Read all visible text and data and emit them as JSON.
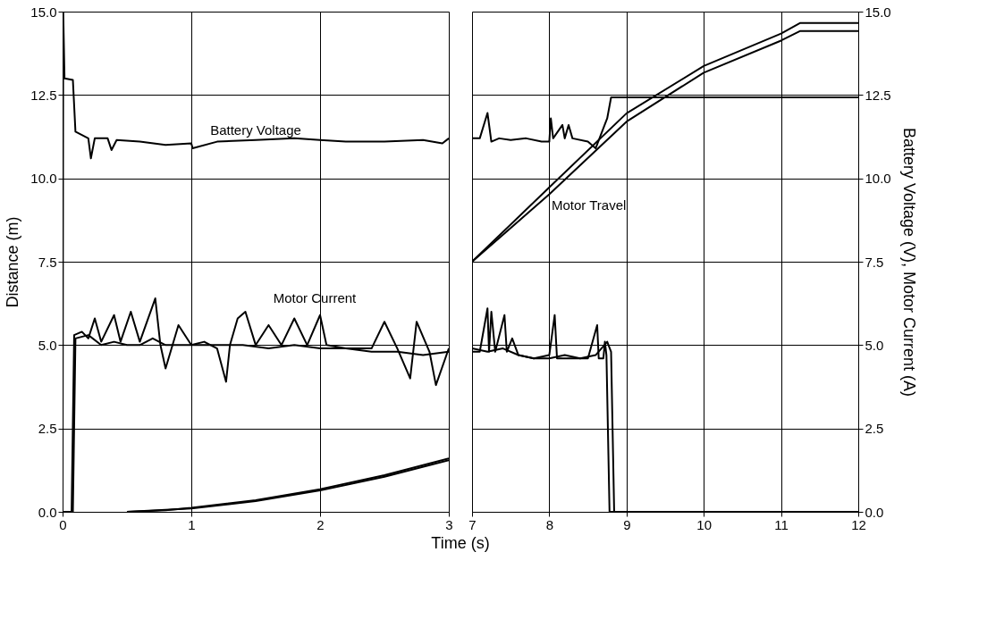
{
  "chart_data": [
    {
      "type": "line",
      "xlabel": "Time (s)",
      "ylabel": "Distance (m)",
      "xlim": [
        0,
        3
      ],
      "xticks": [
        0,
        1,
        2,
        3
      ],
      "ylim": [
        0,
        15
      ],
      "yticks": [
        {
          "value": 0,
          "label": "0.0"
        },
        {
          "value": 2.5,
          "label": "2.5"
        },
        {
          "value": 5,
          "label": "5.0"
        },
        {
          "value": 7.5,
          "label": "7.5"
        },
        {
          "value": 10,
          "label": "10.0"
        },
        {
          "value": 12.5,
          "label": "12.5"
        },
        {
          "value": 15,
          "label": "15.0"
        }
      ],
      "grid": true,
      "legend": false,
      "line_style": "solid",
      "marker": "none",
      "annotations": [
        {
          "text": "Battery Voltage",
          "x": 1.5,
          "y": 11.15
        },
        "Motor Current"
      ],
      "series": [
        {
          "color": "#000000",
          "x": [
            0,
            0.005,
            0.015,
            0.08,
            0.1,
            0.15,
            0.2,
            0.22,
            0.25,
            0.35,
            0.38,
            0.42,
            0.6,
            0.8,
            1.0,
            1.01,
            1.2,
            1.5,
            1.8,
            2.0,
            2.2,
            2.5,
            2.8,
            2.95,
            3.0
          ],
          "values": [
            0,
            15,
            13,
            12.95,
            11.4,
            11.3,
            11.2,
            10.6,
            11.2,
            11.2,
            10.85,
            11.15,
            11.1,
            11.0,
            11.05,
            10.9,
            11.1,
            11.15,
            11.2,
            11.15,
            11.1,
            11.1,
            11.15,
            11.05,
            11.2
          ]
        },
        {
          "color": "#000000",
          "x": [
            0,
            0.07,
            0.09,
            0.15,
            0.2,
            0.25,
            0.3,
            0.4,
            0.45,
            0.53,
            0.6,
            0.72,
            0.76,
            0.8,
            0.9,
            1.0,
            1.1,
            1.2,
            1.27,
            1.3,
            1.36,
            1.42,
            1.5,
            1.6,
            1.7,
            1.8,
            1.9,
            2.0,
            2.05,
            2.2,
            2.4,
            2.5,
            2.6,
            2.7,
            2.75,
            2.85,
            2.9,
            3.0
          ],
          "values": [
            0,
            0,
            5.3,
            5.4,
            5.2,
            5.8,
            5.1,
            5.9,
            5.1,
            6.0,
            5.1,
            6.4,
            5.0,
            4.3,
            5.6,
            5.0,
            5.1,
            4.9,
            3.9,
            5.0,
            5.8,
            6.0,
            5.0,
            5.6,
            5.0,
            5.8,
            5.0,
            5.9,
            5.0,
            4.9,
            4.9,
            5.7,
            4.9,
            4.0,
            5.7,
            4.8,
            3.8,
            4.9
          ]
        },
        {
          "color": "#000000",
          "x": [
            0,
            0.08,
            0.1,
            0.2,
            0.3,
            0.4,
            0.5,
            0.6,
            0.7,
            0.8,
            1.0,
            1.2,
            1.4,
            1.6,
            1.8,
            2.0,
            2.2,
            2.4,
            2.6,
            2.8,
            3.0
          ],
          "values": [
            0,
            0,
            5.2,
            5.3,
            5.0,
            5.1,
            5.0,
            5.0,
            5.2,
            5.0,
            5.0,
            5.0,
            5.0,
            4.9,
            5.0,
            4.9,
            4.9,
            4.8,
            4.8,
            4.7,
            4.8
          ]
        },
        {
          "color": "#000000",
          "x": [
            0.5,
            0.8,
            1.0,
            1.5,
            2.0,
            2.5,
            3.0
          ],
          "values": [
            0,
            0.05,
            0.12,
            0.35,
            0.68,
            1.1,
            1.6
          ]
        },
        {
          "color": "#000000",
          "x": [
            0.5,
            1.0,
            1.5,
            2.0,
            2.5,
            3.0
          ],
          "values": [
            0,
            0.1,
            0.32,
            0.64,
            1.05,
            1.55
          ]
        }
      ]
    },
    {
      "type": "line",
      "y2label": "Battery Voltage (V), Motor Current (A)",
      "xlim": [
        7,
        12
      ],
      "xticks": [
        7,
        8,
        9,
        10,
        11,
        12
      ],
      "y2lim": [
        0,
        15
      ],
      "y2ticks": [
        {
          "value": 0,
          "label": "0.0"
        },
        {
          "value": 2.5,
          "label": "2.5"
        },
        {
          "value": 5,
          "label": "5.0"
        },
        {
          "value": 7.5,
          "label": "7.5"
        },
        {
          "value": 10,
          "label": "10.0"
        },
        {
          "value": 12.5,
          "label": "12.5"
        },
        {
          "value": 15,
          "label": "15.0"
        }
      ],
      "grid": true,
      "legend": false,
      "line_style": "solid",
      "marker": "none",
      "annotations": [
        "Motor Travel"
      ],
      "series": [
        {
          "color": "#000000",
          "axis": "y2",
          "x": [
            7.0,
            7.1,
            7.2,
            7.25,
            7.35,
            7.5,
            7.7,
            7.9,
            8.0,
            8.02,
            8.05,
            8.17,
            8.2,
            8.25,
            8.3,
            8.5,
            8.6,
            8.7,
            8.75,
            8.8,
            9.0,
            10.0,
            11.0,
            12.0
          ],
          "values": [
            11.2,
            11.2,
            11.96,
            11.1,
            11.2,
            11.15,
            11.2,
            11.1,
            11.1,
            11.8,
            11.2,
            11.6,
            11.2,
            11.6,
            11.2,
            11.1,
            10.9,
            11.5,
            11.8,
            12.43,
            12.43,
            12.43,
            12.43,
            12.43
          ]
        },
        {
          "color": "#000000",
          "axis": "y2",
          "x": [
            7.0,
            7.1,
            7.2,
            7.22,
            7.25,
            7.3,
            7.42,
            7.45,
            7.52,
            7.6,
            7.8,
            8.0,
            8.07,
            8.1,
            8.3,
            8.5,
            8.62,
            8.64,
            8.7,
            8.72,
            8.74,
            8.78,
            9.0,
            10.0,
            11.0,
            12.0
          ],
          "values": [
            4.8,
            4.8,
            6.1,
            4.8,
            6.0,
            4.8,
            5.9,
            4.8,
            5.2,
            4.7,
            4.6,
            4.7,
            5.9,
            4.6,
            4.6,
            4.6,
            5.6,
            4.6,
            4.6,
            5.1,
            4.7,
            0,
            0,
            0,
            0,
            0
          ]
        },
        {
          "color": "#000000",
          "axis": "y2",
          "x": [
            7.0,
            7.2,
            7.4,
            7.6,
            7.8,
            8.0,
            8.2,
            8.4,
            8.6,
            8.75,
            8.8,
            8.84
          ],
          "values": [
            4.9,
            4.8,
            4.9,
            4.7,
            4.6,
            4.6,
            4.7,
            4.6,
            4.7,
            5.1,
            4.8,
            0
          ]
        },
        {
          "color": "#000000",
          "axis": "y2",
          "x": [
            7.0,
            8.0,
            9.0,
            10.0,
            11.0,
            11.25,
            12.0
          ],
          "values": [
            7.5,
            9.73,
            11.95,
            13.37,
            14.34,
            14.66,
            14.66
          ]
        },
        {
          "color": "#000000",
          "axis": "y2",
          "x": [
            7.0,
            8.0,
            9.0,
            10.0,
            11.0,
            11.25,
            12.0
          ],
          "values": [
            7.5,
            9.52,
            11.7,
            13.17,
            14.13,
            14.42,
            14.42
          ]
        }
      ]
    }
  ]
}
